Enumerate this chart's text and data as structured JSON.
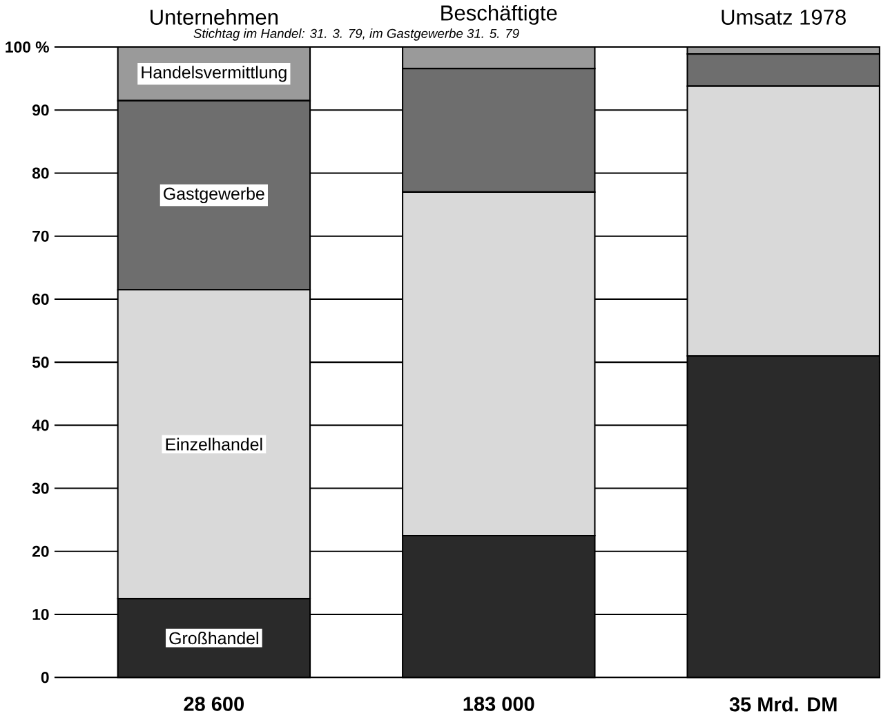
{
  "chart_data": {
    "type": "bar",
    "stacked": true,
    "subtitle": "*Stichtag im Handel: 31. 3. 79, im Gastgewerbe 31. 5. 79*",
    "categories": [
      "Unternehmen",
      "Beschäftigte",
      "Umsatz 1978"
    ],
    "series": [
      {
        "name": "Großhandel",
        "color": "#2a2a2a",
        "values": [
          12.5,
          22.5,
          51
        ]
      },
      {
        "name": "Einzelhandel",
        "color": "#d9d9d9",
        "values": [
          49,
          54.5,
          42.8
        ]
      },
      {
        "name": "Gastgewerbe",
        "color": "#6e6e6e",
        "values": [
          30,
          19.6,
          5.1
        ]
      },
      {
        "name": "Handelsvermittlung",
        "color": "#9a9a9a",
        "values": [
          8.5,
          3.4,
          1.1
        ]
      }
    ],
    "annotations": [
      "28 600",
      "183 000",
      "35 Mrd. DM"
    ],
    "ylim": [
      0,
      100
    ],
    "yticks": [
      0,
      10,
      20,
      30,
      40,
      50,
      60,
      70,
      80,
      90,
      {
        "value": 100,
        "label": "100 %"
      }
    ],
    "grid": "y"
  }
}
